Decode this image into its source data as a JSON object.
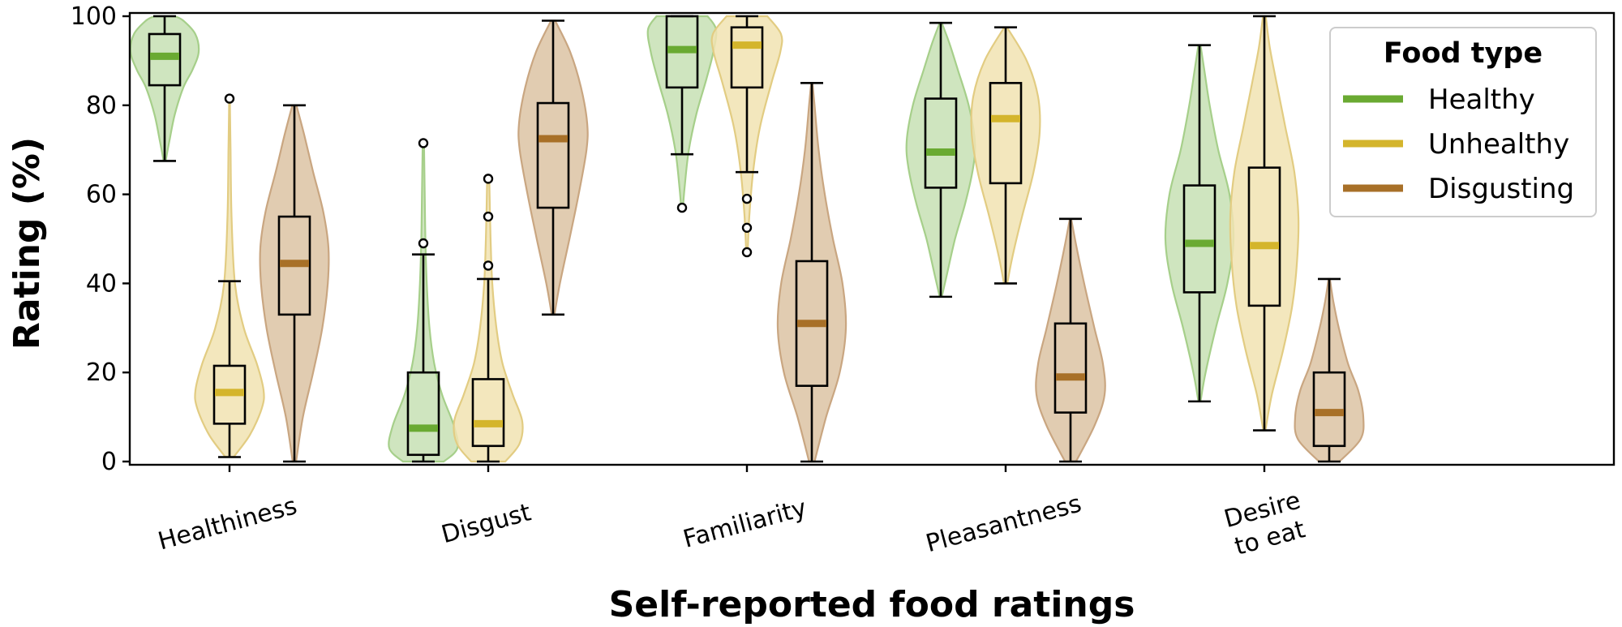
{
  "chart_data": {
    "type": "violin",
    "title": "",
    "xlabel": "Self-reported food ratings",
    "ylabel": "Rating (%)",
    "ylim": [
      0,
      100
    ],
    "yticks": [
      0,
      20,
      40,
      60,
      80,
      100
    ],
    "grid": false,
    "legend": {
      "title": "Food type",
      "position": "top-right"
    },
    "categories": [
      {
        "lines": [
          "Healthiness"
        ]
      },
      {
        "lines": [
          "Disgust"
        ]
      },
      {
        "lines": [
          "Familiarity"
        ]
      },
      {
        "lines": [
          "Pleasantness"
        ]
      },
      {
        "lines": [
          "Desire",
          "to eat"
        ]
      }
    ],
    "series": [
      {
        "name": "Healthy",
        "color": "#6aaa32",
        "fill": "#c7e0b4",
        "edge": "#a6cf8a",
        "data": [
          {
            "median": 91,
            "q1": 84.5,
            "q3": 96,
            "whisker_low": 67.5,
            "whisker_high": 100,
            "outliers": [],
            "violin": [
              [
                67.5,
                0.03
              ],
              [
                72,
                0.14
              ],
              [
                78,
                0.3
              ],
              [
                84,
                0.55
              ],
              [
                88,
                0.82
              ],
              [
                92,
                1
              ],
              [
                96,
                0.9
              ],
              [
                99,
                0.55
              ],
              [
                100,
                0.3
              ]
            ]
          },
          {
            "median": 7.5,
            "q1": 1.5,
            "q3": 20,
            "whisker_low": 0,
            "whisker_high": 46.5,
            "outliers": [
              49,
              71.5
            ],
            "violin": [
              [
                0,
                0.6
              ],
              [
                3,
                1
              ],
              [
                8,
                0.9
              ],
              [
                15,
                0.55
              ],
              [
                22,
                0.32
              ],
              [
                30,
                0.18
              ],
              [
                40,
                0.1
              ],
              [
                50,
                0.06
              ],
              [
                60,
                0.04
              ],
              [
                71.5,
                0.02
              ]
            ]
          },
          {
            "median": 92.5,
            "q1": 84,
            "q3": 100,
            "whisker_low": 69,
            "whisker_high": 100,
            "outliers": [
              57
            ],
            "violin": [
              [
                56.5,
                0.02
              ],
              [
                62,
                0.08
              ],
              [
                70,
                0.2
              ],
              [
                78,
                0.42
              ],
              [
                86,
                0.72
              ],
              [
                92,
                0.92
              ],
              [
                97,
                1
              ],
              [
                100,
                0.75
              ]
            ]
          },
          {
            "median": 69.5,
            "q1": 61.5,
            "q3": 81.5,
            "whisker_low": 37,
            "whisker_high": 98.5,
            "outliers": [],
            "violin": [
              [
                37,
                0.03
              ],
              [
                42,
                0.18
              ],
              [
                50,
                0.42
              ],
              [
                58,
                0.72
              ],
              [
                66,
                0.95
              ],
              [
                72,
                1
              ],
              [
                80,
                0.82
              ],
              [
                88,
                0.5
              ],
              [
                94,
                0.25
              ],
              [
                98.5,
                0.03
              ]
            ]
          },
          {
            "median": 49,
            "q1": 38,
            "q3": 62,
            "whisker_low": 13.5,
            "whisker_high": 93.5,
            "outliers": [],
            "violin": [
              [
                13.5,
                0.03
              ],
              [
                20,
                0.18
              ],
              [
                30,
                0.48
              ],
              [
                40,
                0.82
              ],
              [
                50,
                1
              ],
              [
                60,
                0.88
              ],
              [
                70,
                0.55
              ],
              [
                80,
                0.3
              ],
              [
                88,
                0.14
              ],
              [
                93.5,
                0.03
              ]
            ]
          }
        ]
      },
      {
        "name": "Unhealthy",
        "color": "#d4b52c",
        "fill": "#f1e3b1",
        "edge": "#e2cc82",
        "data": [
          {
            "median": 15.5,
            "q1": 8.5,
            "q3": 21.5,
            "whisker_low": 1,
            "whisker_high": 40.5,
            "outliers": [
              81.5
            ],
            "violin": [
              [
                1,
                0.12
              ],
              [
                6,
                0.6
              ],
              [
                12,
                0.95
              ],
              [
                16,
                1
              ],
              [
                22,
                0.8
              ],
              [
                30,
                0.42
              ],
              [
                40,
                0.16
              ],
              [
                55,
                0.06
              ],
              [
                70,
                0.03
              ],
              [
                81.5,
                0.01
              ]
            ]
          },
          {
            "median": 8.5,
            "q1": 3.5,
            "q3": 18.5,
            "whisker_low": 0,
            "whisker_high": 41,
            "outliers": [
              44,
              55,
              63.5
            ],
            "violin": [
              [
                0,
                0.5
              ],
              [
                4,
                0.92
              ],
              [
                9,
                1
              ],
              [
                15,
                0.72
              ],
              [
                22,
                0.42
              ],
              [
                30,
                0.24
              ],
              [
                40,
                0.12
              ],
              [
                50,
                0.07
              ],
              [
                63.5,
                0.03
              ]
            ]
          },
          {
            "median": 93.5,
            "q1": 84,
            "q3": 97.5,
            "whisker_low": 65,
            "whisker_high": 100,
            "outliers": [
              47,
              52.5,
              59
            ],
            "violin": [
              [
                46.5,
                0.02
              ],
              [
                55,
                0.07
              ],
              [
                65,
                0.18
              ],
              [
                75,
                0.38
              ],
              [
                85,
                0.72
              ],
              [
                92,
                0.98
              ],
              [
                96,
                1
              ],
              [
                100,
                0.6
              ]
            ]
          },
          {
            "median": 77,
            "q1": 62.5,
            "q3": 85,
            "whisker_low": 40,
            "whisker_high": 97.5,
            "outliers": [],
            "violin": [
              [
                40,
                0.05
              ],
              [
                46,
                0.2
              ],
              [
                55,
                0.48
              ],
              [
                65,
                0.82
              ],
              [
                74,
                1
              ],
              [
                82,
                0.95
              ],
              [
                90,
                0.62
              ],
              [
                97.5,
                0.04
              ]
            ]
          },
          {
            "median": 48.5,
            "q1": 35,
            "q3": 66,
            "whisker_low": 7,
            "whisker_high": 100,
            "outliers": [],
            "violin": [
              [
                7,
                0.03
              ],
              [
                15,
                0.22
              ],
              [
                25,
                0.55
              ],
              [
                35,
                0.82
              ],
              [
                45,
                0.96
              ],
              [
                55,
                1
              ],
              [
                65,
                0.88
              ],
              [
                75,
                0.62
              ],
              [
                85,
                0.36
              ],
              [
                93,
                0.16
              ],
              [
                100,
                0.04
              ]
            ]
          }
        ]
      },
      {
        "name": "Disgusting",
        "color": "#a87028",
        "fill": "#dcc3a3",
        "edge": "#c9a681",
        "data": [
          {
            "median": 44.5,
            "q1": 33,
            "q3": 55,
            "whisker_low": 0,
            "whisker_high": 80,
            "outliers": [],
            "violin": [
              [
                0,
                0.05
              ],
              [
                10,
                0.25
              ],
              [
                20,
                0.55
              ],
              [
                30,
                0.82
              ],
              [
                40,
                0.98
              ],
              [
                48,
                1
              ],
              [
                56,
                0.85
              ],
              [
                65,
                0.55
              ],
              [
                73,
                0.3
              ],
              [
                80,
                0.06
              ]
            ]
          },
          {
            "median": 72.5,
            "q1": 57,
            "q3": 80.5,
            "whisker_low": 33,
            "whisker_high": 99,
            "outliers": [],
            "violin": [
              [
                33,
                0.04
              ],
              [
                40,
                0.2
              ],
              [
                50,
                0.48
              ],
              [
                60,
                0.75
              ],
              [
                70,
                0.98
              ],
              [
                76,
                1
              ],
              [
                84,
                0.82
              ],
              [
                92,
                0.5
              ],
              [
                99,
                0.06
              ]
            ]
          },
          {
            "median": 31,
            "q1": 17,
            "q3": 45,
            "whisker_low": 0,
            "whisker_high": 85,
            "outliers": [],
            "violin": [
              [
                0,
                0.08
              ],
              [
                10,
                0.42
              ],
              [
                20,
                0.82
              ],
              [
                30,
                1
              ],
              [
                40,
                0.9
              ],
              [
                50,
                0.62
              ],
              [
                60,
                0.38
              ],
              [
                70,
                0.2
              ],
              [
                80,
                0.08
              ],
              [
                85,
                0.02
              ]
            ]
          },
          {
            "median": 19,
            "q1": 11,
            "q3": 31,
            "whisker_low": 0,
            "whisker_high": 54.5,
            "outliers": [],
            "violin": [
              [
                0,
                0.16
              ],
              [
                8,
                0.7
              ],
              [
                15,
                1
              ],
              [
                22,
                0.95
              ],
              [
                30,
                0.7
              ],
              [
                40,
                0.4
              ],
              [
                48,
                0.18
              ],
              [
                54.5,
                0.02
              ]
            ]
          },
          {
            "median": 11,
            "q1": 3.5,
            "q3": 20,
            "whisker_low": 0,
            "whisker_high": 41,
            "outliers": [],
            "violin": [
              [
                0,
                0.3
              ],
              [
                5,
                0.92
              ],
              [
                10,
                1
              ],
              [
                16,
                0.85
              ],
              [
                22,
                0.55
              ],
              [
                30,
                0.28
              ],
              [
                36,
                0.12
              ],
              [
                41,
                0.02
              ]
            ]
          }
        ]
      }
    ]
  }
}
